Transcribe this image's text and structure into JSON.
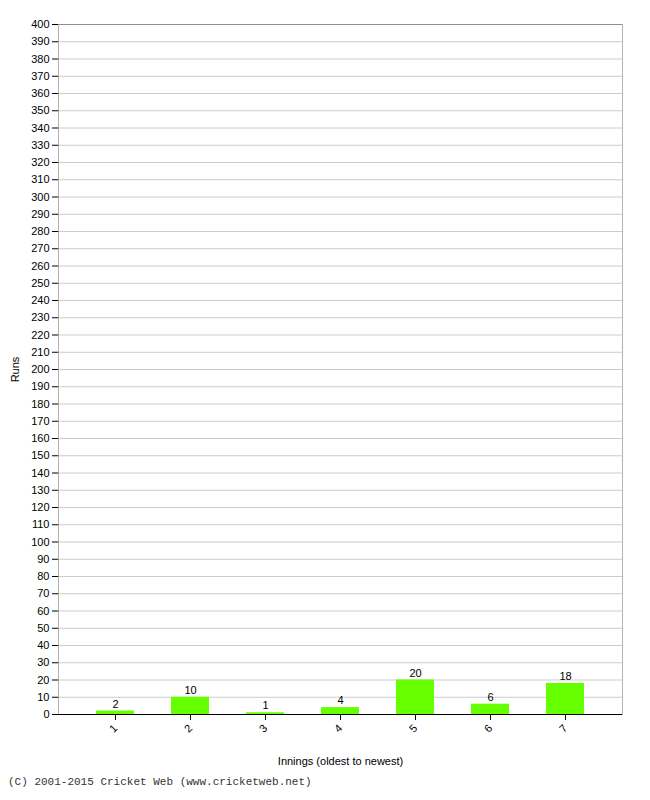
{
  "chart_data": {
    "type": "bar",
    "categories": [
      "1",
      "2",
      "3",
      "4",
      "5",
      "6",
      "7"
    ],
    "values": [
      2,
      10,
      1,
      4,
      20,
      6,
      18
    ],
    "color": "#66ff00",
    "data_labels": true,
    "xlabel": "Innings (oldest to newest)",
    "ylabel": "Runs",
    "ylim": [
      0,
      400
    ],
    "yticks": [
      0,
      10,
      20,
      30,
      40,
      50,
      60,
      70,
      80,
      90,
      100,
      110,
      120,
      130,
      140,
      150,
      160,
      170,
      180,
      190,
      200,
      210,
      220,
      230,
      240,
      250,
      260,
      270,
      280,
      290,
      300,
      310,
      320,
      330,
      340,
      350,
      360,
      370,
      380,
      390,
      400
    ],
    "grid": true,
    "annotations": [
      "(C) 2001-2015 Cricket Web (www.cricketweb.net)"
    ]
  }
}
